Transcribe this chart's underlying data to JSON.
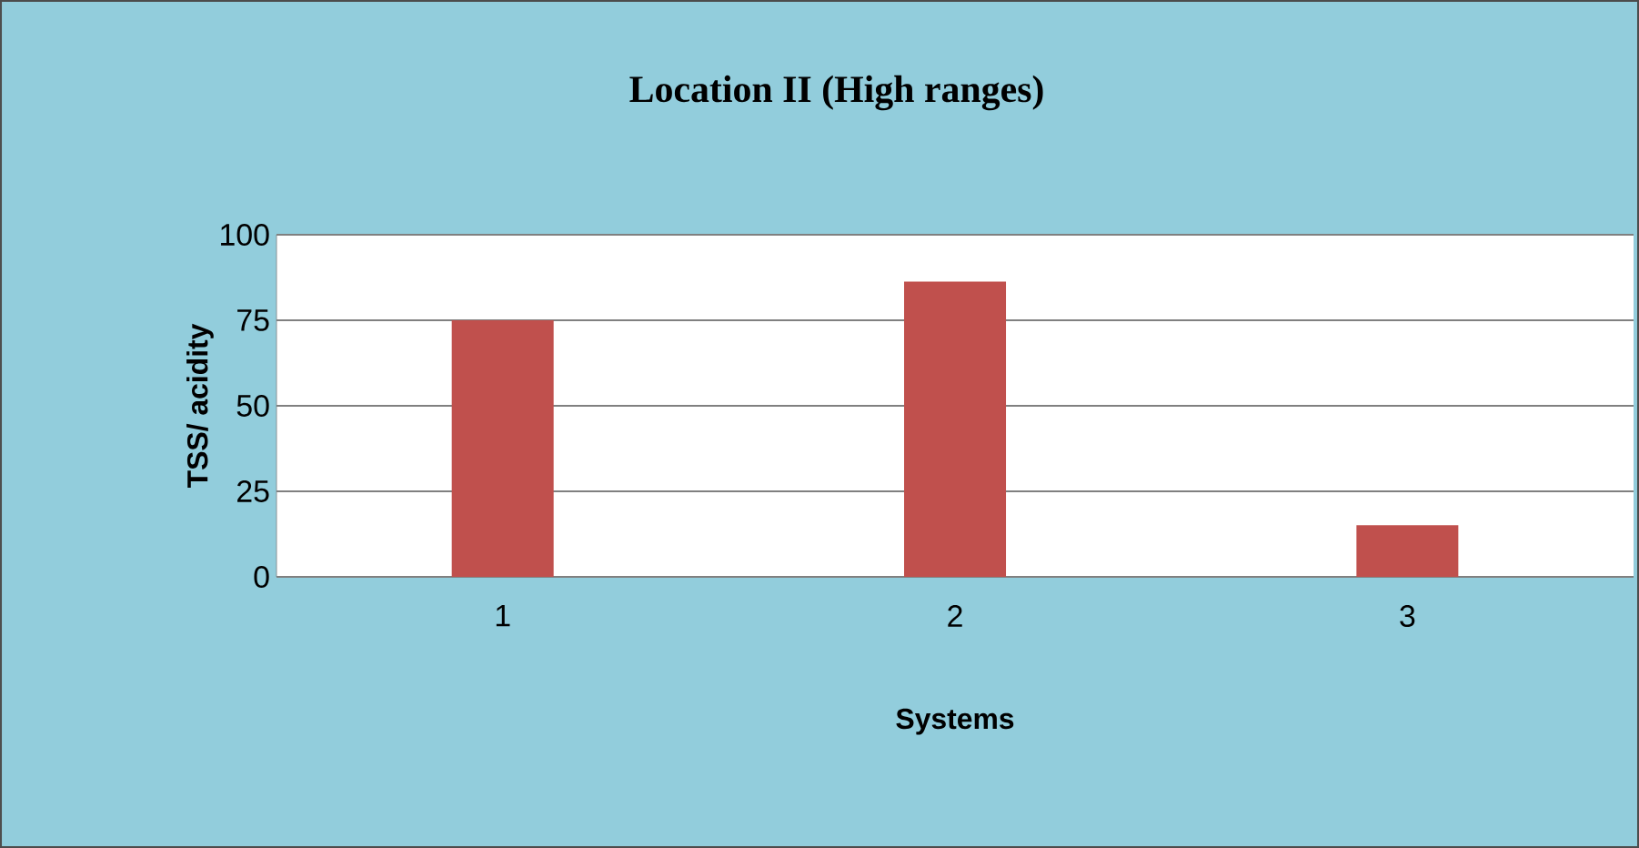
{
  "chart_data": {
    "type": "bar",
    "title": "Location II (High ranges)",
    "xlabel": "Systems",
    "ylabel": "TSS/ acidity",
    "categories": [
      "1",
      "2",
      "3"
    ],
    "values": [
      75,
      86.3,
      15.1
    ],
    "color": "#c0504d",
    "ylim": [
      0,
      100
    ],
    "yticks": [
      0,
      25,
      50,
      75,
      100
    ],
    "grid": "y"
  }
}
